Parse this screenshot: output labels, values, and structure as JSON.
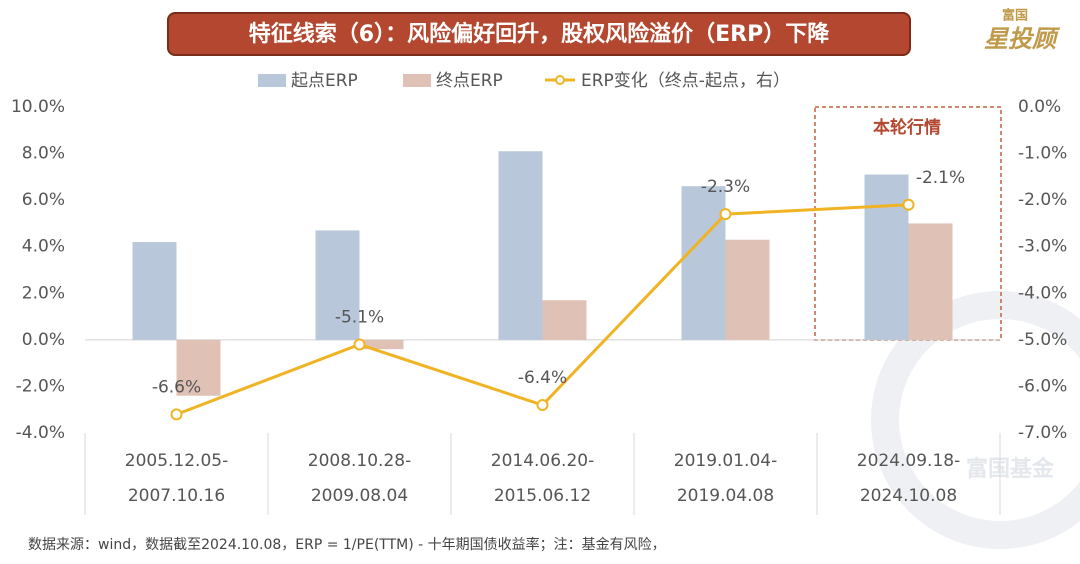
{
  "brand": {
    "logo_top": "富国",
    "logo_main": "星投顾",
    "watermark": "富国基金"
  },
  "footnote": "数据来源：wind，数据截至2024.10.08，ERP = 1/PE(TTM) - 十年期国债收益率；注：基金有风险，",
  "chart_data": {
    "type": "bar_line",
    "title": "特征线索（6）：风险偏好回升，股权风险溢价（ERP）下降",
    "annotation": "本轮行情",
    "categories": [
      [
        "2005.12.05-",
        "2007.10.16"
      ],
      [
        "2008.10.28-",
        "2009.08.04"
      ],
      [
        "2014.06.20-",
        "2015.06.12"
      ],
      [
        "2019.01.04-",
        "2019.04.08"
      ],
      [
        "2024.09.18-",
        "2024.10.08"
      ]
    ],
    "series": [
      {
        "name": "起点ERP",
        "color": "#b8c8da",
        "values": [
          4.2,
          4.7,
          8.1,
          6.6,
          7.1
        ]
      },
      {
        "name": "终点ERP",
        "color": "#dfc1b6",
        "values": [
          -2.4,
          -0.4,
          1.7,
          4.3,
          5.0
        ]
      },
      {
        "name": "ERP变化（终点-起点，右）",
        "color": "#f0b323",
        "axis": "y2",
        "values": [
          -6.6,
          -5.1,
          -6.4,
          -2.3,
          -2.1
        ],
        "value_labels": [
          "-6.6%",
          "-5.1%",
          "-6.4%",
          "-2.3%",
          "-2.1%"
        ]
      }
    ],
    "ylim": [
      -4,
      10
    ],
    "yticks": [
      {
        "value": -4,
        "label": "-4.0%"
      },
      {
        "value": -2,
        "label": "-2.0%"
      },
      {
        "value": 0,
        "label": "0.0%"
      },
      {
        "value": 2,
        "label": "2.0%"
      },
      {
        "value": 4,
        "label": "4.0%"
      },
      {
        "value": 6,
        "label": "6.0%"
      },
      {
        "value": 8,
        "label": "8.0%"
      },
      {
        "value": 10,
        "label": "10.0%"
      }
    ],
    "y2lim": [
      -7,
      0
    ],
    "y2ticks": [
      {
        "value": -7,
        "label": "-7.0%"
      },
      {
        "value": -6,
        "label": "-6.0%"
      },
      {
        "value": -5,
        "label": "-5.0%"
      },
      {
        "value": -4,
        "label": "-4.0%"
      },
      {
        "value": -3,
        "label": "-3.0%"
      },
      {
        "value": -2,
        "label": "-2.0%"
      },
      {
        "value": -1,
        "label": "-1.0%"
      },
      {
        "value": 0,
        "label": "0.0%"
      }
    ]
  }
}
